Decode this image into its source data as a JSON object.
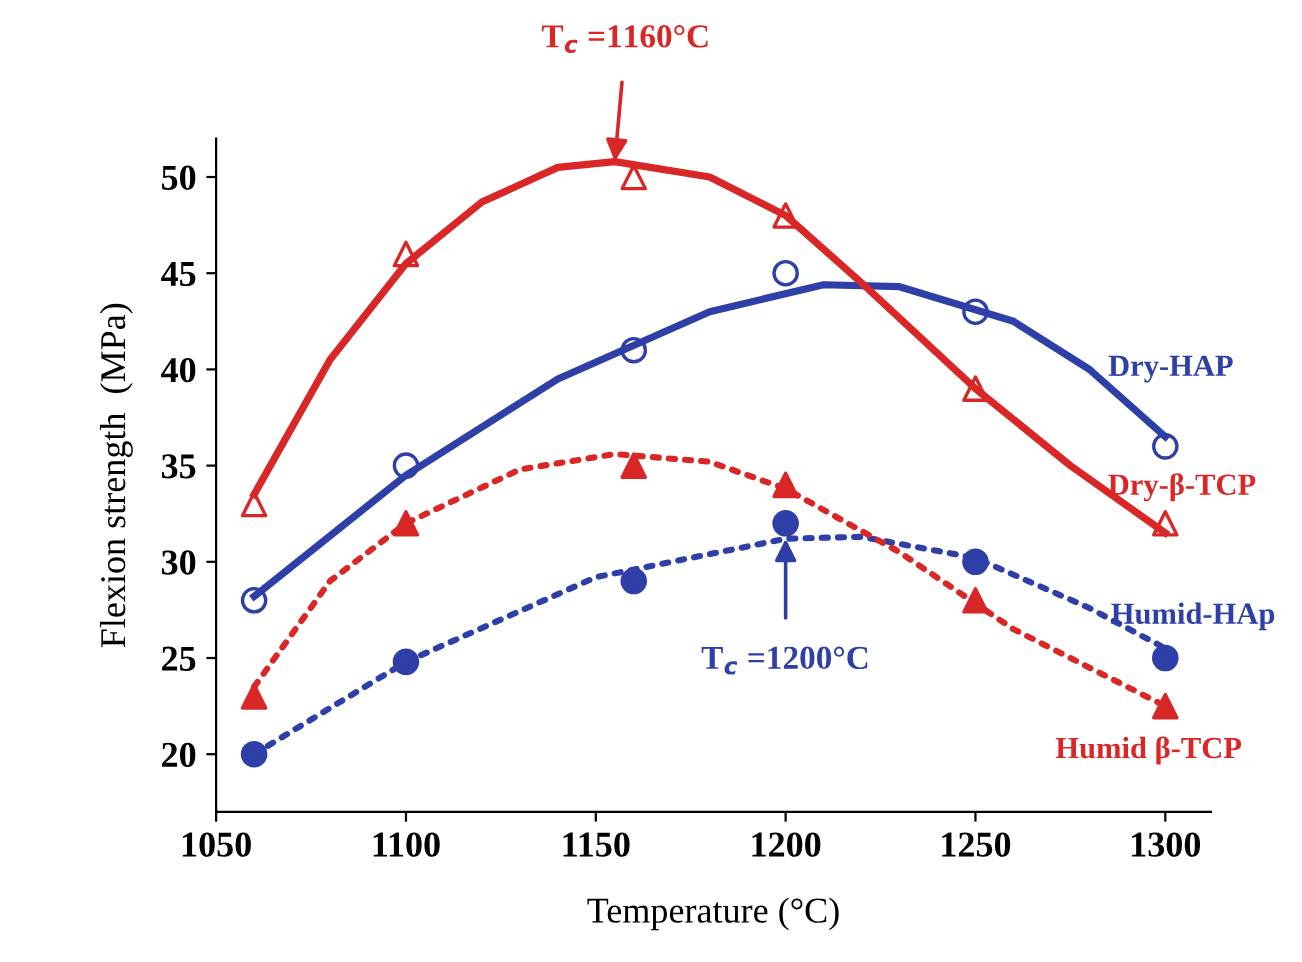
{
  "chart_data": {
    "type": "scatter",
    "xlabel": "Temperature (°C)",
    "ylabel": "Flexion strength  (MPa)",
    "xlim": [
      1050,
      1312
    ],
    "xticks": [
      1050,
      1100,
      1150,
      1200,
      1250,
      1300
    ],
    "ylim": [
      17,
      52
    ],
    "yticks": [
      20,
      25,
      30,
      35,
      40,
      45,
      50
    ],
    "grid": false,
    "legend": false,
    "series": [
      {
        "name": "Dry-HAP",
        "marker": "circle",
        "line_style": "solid",
        "color": "#2e3fa8",
        "x": [
          1060,
          1100,
          1160,
          1200,
          1250,
          1300
        ],
        "values": [
          28,
          35,
          41,
          45,
          43,
          36
        ]
      },
      {
        "name": "Dry-β-TCP",
        "marker": "triangle",
        "line_style": "solid",
        "color": "#d92626",
        "x": [
          1060,
          1100,
          1160,
          1200,
          1250,
          1300
        ],
        "values": [
          33,
          46,
          50,
          48,
          39,
          32
        ]
      },
      {
        "name": "Humid-HAp",
        "marker": "circle",
        "line_style": "dotted",
        "color": "#2e3fa8",
        "x": [
          1060,
          1100,
          1160,
          1200,
          1250,
          1300
        ],
        "values": [
          20,
          24.8,
          29,
          32,
          30,
          25
        ]
      },
      {
        "name": "Humid β-TCP",
        "marker": "triangle",
        "line_style": "dotted",
        "color": "#d92626",
        "x": [
          1060,
          1100,
          1160,
          1200,
          1250,
          1300
        ],
        "values": [
          23,
          32,
          35,
          34,
          28,
          22.5
        ]
      },
      {
        "type": "line",
        "line_style": "solid",
        "color": "#2e3fa8",
        "x": [
          1060,
          1100,
          1140,
          1180,
          1210,
          1230,
          1260,
          1280,
          1300
        ],
        "values": [
          28.2,
          34.5,
          39.5,
          43,
          44.4,
          44.3,
          42.5,
          40,
          36.5
        ]
      },
      {
        "type": "line",
        "line_style": "solid",
        "color": "#d92626",
        "x": [
          1060,
          1080,
          1100,
          1120,
          1140,
          1155,
          1180,
          1200,
          1220,
          1250,
          1275,
          1300
        ],
        "values": [
          33.5,
          40.5,
          45.5,
          48.7,
          50.5,
          50.8,
          50,
          48,
          44.5,
          39,
          35,
          31.5
        ]
      },
      {
        "type": "line",
        "line_style": "dotted",
        "color": "#2e3fa8",
        "x": [
          1060,
          1100,
          1150,
          1200,
          1220,
          1250,
          1280,
          1300
        ],
        "values": [
          20,
          24.8,
          29.2,
          31.2,
          31.3,
          30.2,
          27.6,
          25.5
        ]
      },
      {
        "type": "line",
        "line_style": "dotted",
        "color": "#d92626",
        "x": [
          1060,
          1080,
          1100,
          1130,
          1155,
          1180,
          1200,
          1230,
          1260,
          1300
        ],
        "values": [
          23.5,
          29,
          32,
          34.8,
          35.6,
          35.2,
          33.8,
          30.5,
          26.5,
          22.5
        ]
      }
    ],
    "annotations": [
      {
        "text": "T$_{c}$ =1160°C",
        "x": 1155,
        "y": 50.8
      },
      {
        "text": "T$_{c}$ =1200°C",
        "x": 1200,
        "y": 31.2
      }
    ]
  }
}
